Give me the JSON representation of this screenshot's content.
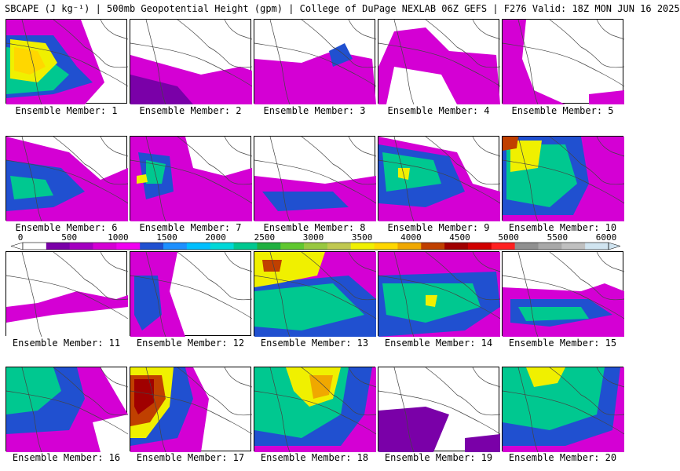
{
  "header": {
    "title": "SBCAPE (J kg⁻¹) | 500mb Geopotential Height (gpm) | College of DuPage NEXLAB 06Z GEFS | F276 Valid: 18Z MON JUN 16 2025"
  },
  "colorbar": {
    "ticks": [
      "0",
      "500",
      "1000",
      "1500",
      "2000",
      "2500",
      "3000",
      "3500",
      "4000",
      "4500",
      "5000",
      "5500",
      "6000"
    ],
    "colors": [
      "#ffffff",
      "#7a00a8",
      "#a300c0",
      "#d400d4",
      "#f000f0",
      "#2050d0",
      "#1e90ff",
      "#00bfff",
      "#00d8d8",
      "#00c890",
      "#20b040",
      "#60c830",
      "#98c840",
      "#c0c850",
      "#f0f000",
      "#ffd700",
      "#f0a800",
      "#c04000",
      "#a00000",
      "#d00000",
      "#ff2020",
      "#909090",
      "#a8a8a8",
      "#c0c0c0",
      "#d0e4f0"
    ]
  },
  "panels": [
    {
      "label": "Ensemble Member: 1"
    },
    {
      "label": "Ensemble Member: 2"
    },
    {
      "label": "Ensemble Member: 3"
    },
    {
      "label": "Ensemble Member: 4"
    },
    {
      "label": "Ensemble Member: 5"
    },
    {
      "label": "Ensemble Member: 6"
    },
    {
      "label": "Ensemble Member: 7"
    },
    {
      "label": "Ensemble Member: 8"
    },
    {
      "label": "Ensemble Member: 9"
    },
    {
      "label": "Ensemble Member: 10"
    },
    {
      "label": "Ensemble Member: 11"
    },
    {
      "label": "Ensemble Member: 12"
    },
    {
      "label": "Ensemble Member: 13"
    },
    {
      "label": "Ensemble Member: 14"
    },
    {
      "label": "Ensemble Member: 15"
    },
    {
      "label": "Ensemble Member: 16"
    },
    {
      "label": "Ensemble Member: 17"
    },
    {
      "label": "Ensemble Member: 18"
    },
    {
      "label": "Ensemble Member: 19"
    },
    {
      "label": "Ensemble Member: 20"
    }
  ]
}
